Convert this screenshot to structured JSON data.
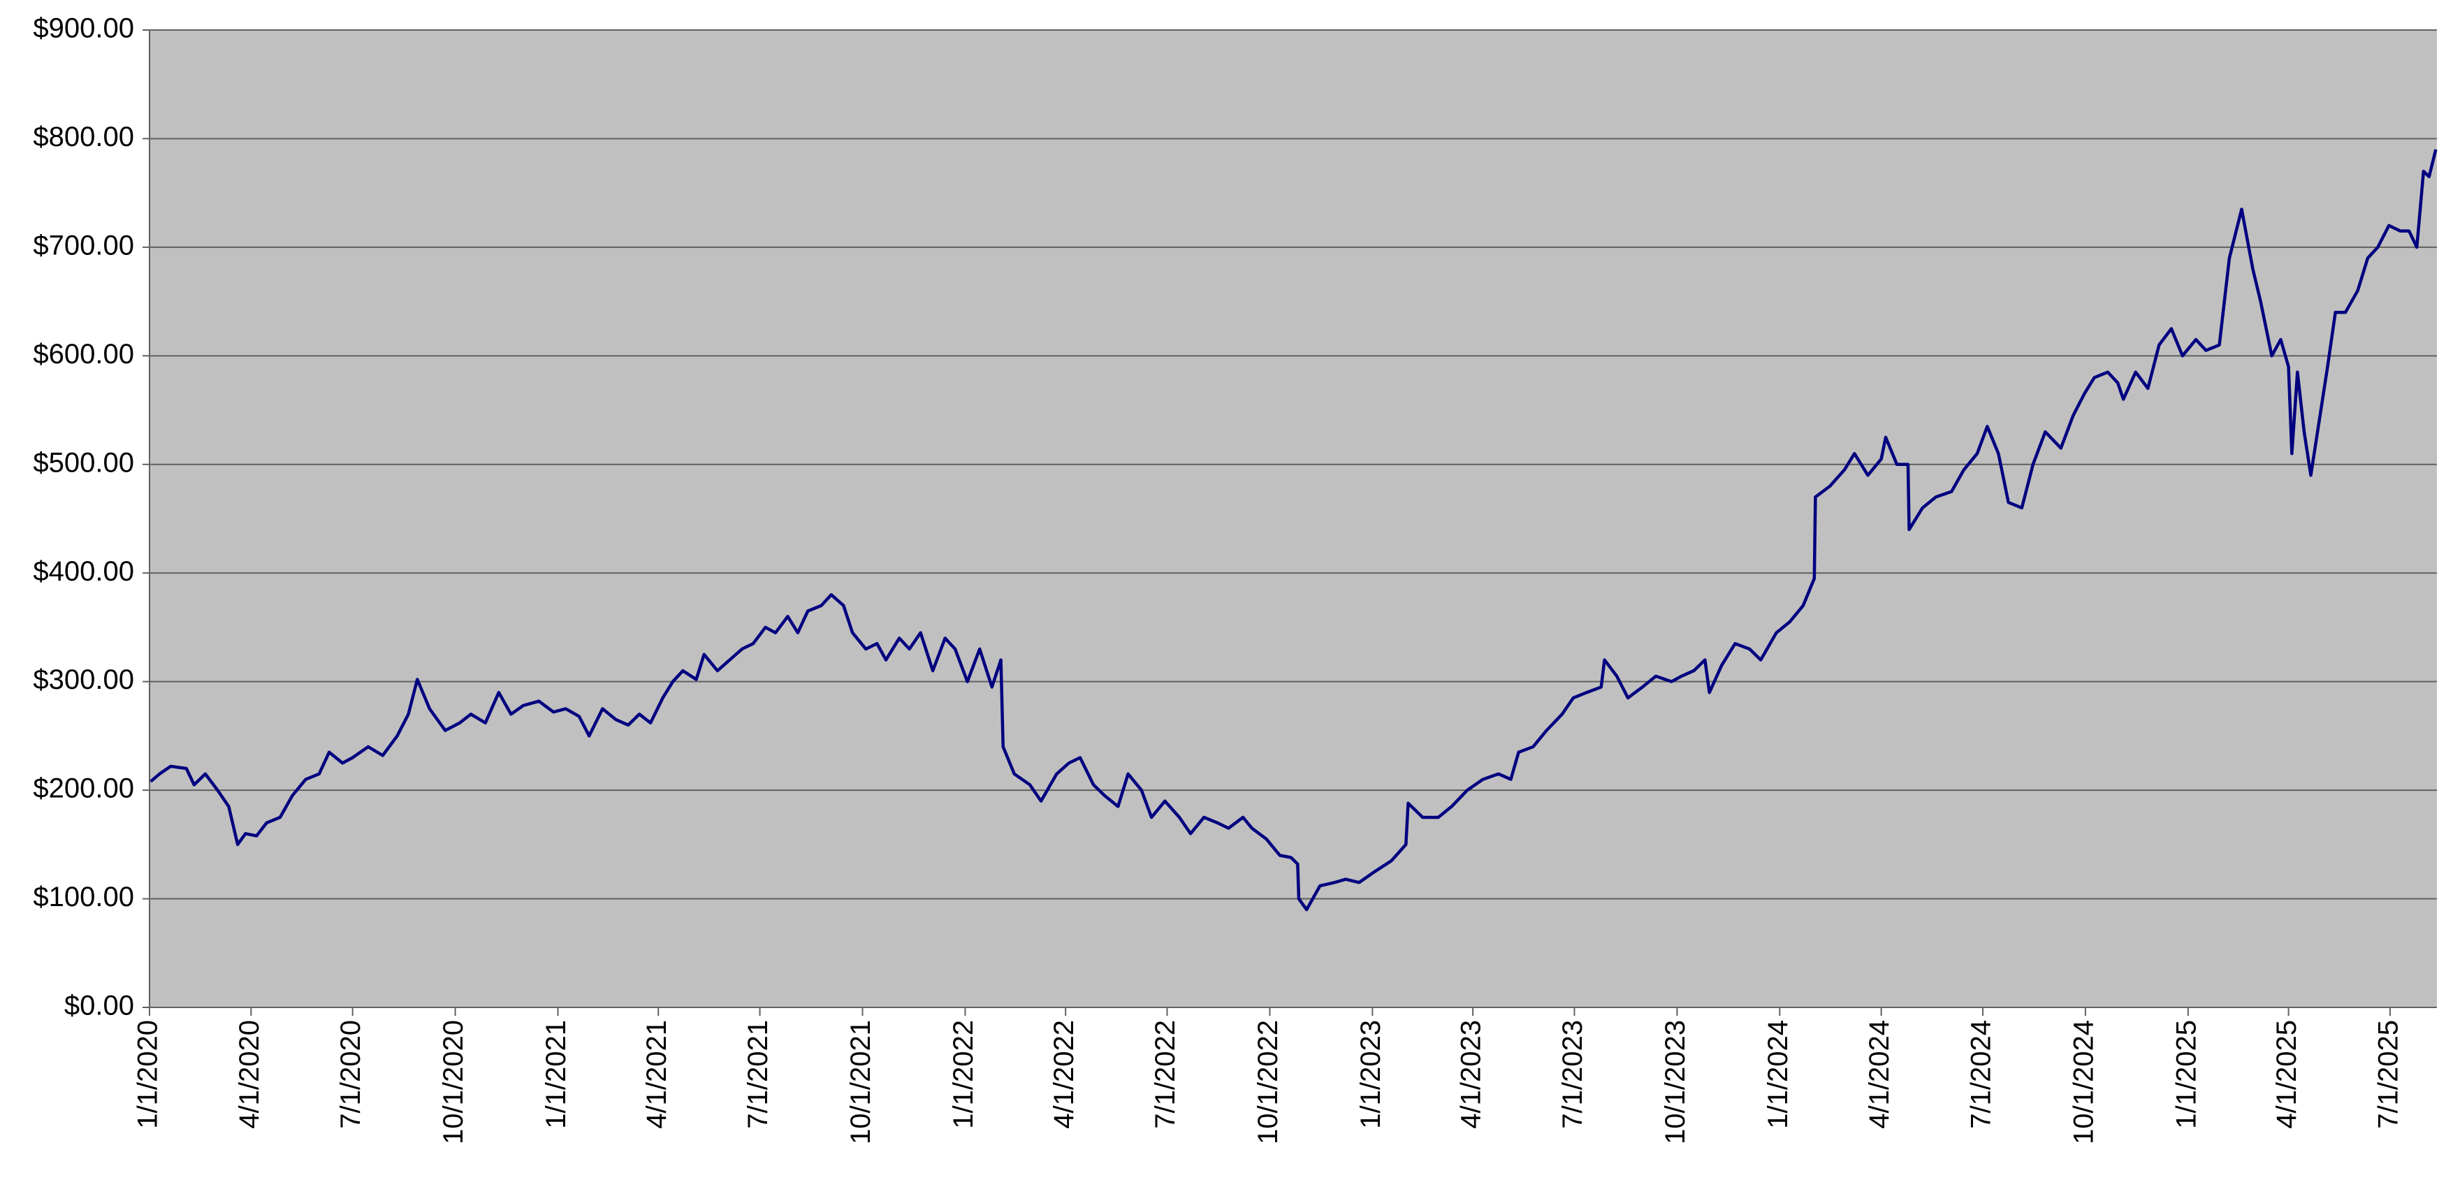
{
  "chart_data": {
    "type": "line",
    "color": "#000080",
    "background": "#c0c0c0",
    "grid": true,
    "xlim": [
      "2020-01-01",
      "2025-08-12"
    ],
    "ylim": [
      0,
      900
    ],
    "yticks": [
      {
        "value": 0,
        "label": "$0.00"
      },
      {
        "value": 100,
        "label": "$100.00"
      },
      {
        "value": 200,
        "label": "$200.00"
      },
      {
        "value": 300,
        "label": "$300.00"
      },
      {
        "value": 400,
        "label": "$400.00"
      },
      {
        "value": 500,
        "label": "$500.00"
      },
      {
        "value": 600,
        "label": "$600.00"
      },
      {
        "value": 700,
        "label": "$700.00"
      },
      {
        "value": 800,
        "label": "$800.00"
      },
      {
        "value": 900,
        "label": "$900.00"
      }
    ],
    "xticks": [
      {
        "value": "2020-01-01",
        "label": "1/1/2020"
      },
      {
        "value": "2020-04-01",
        "label": "4/1/2020"
      },
      {
        "value": "2020-07-01",
        "label": "7/1/2020"
      },
      {
        "value": "2020-10-01",
        "label": "10/1/2020"
      },
      {
        "value": "2021-01-01",
        "label": "1/1/2021"
      },
      {
        "value": "2021-04-01",
        "label": "4/1/2021"
      },
      {
        "value": "2021-07-01",
        "label": "7/1/2021"
      },
      {
        "value": "2021-10-01",
        "label": "10/1/2021"
      },
      {
        "value": "2022-01-01",
        "label": "1/1/2022"
      },
      {
        "value": "2022-04-01",
        "label": "4/1/2022"
      },
      {
        "value": "2022-07-01",
        "label": "7/1/2022"
      },
      {
        "value": "2022-10-01",
        "label": "10/1/2022"
      },
      {
        "value": "2023-01-01",
        "label": "1/1/2023"
      },
      {
        "value": "2023-04-01",
        "label": "4/1/2023"
      },
      {
        "value": "2023-07-01",
        "label": "7/1/2023"
      },
      {
        "value": "2023-10-01",
        "label": "10/1/2023"
      },
      {
        "value": "2024-01-01",
        "label": "1/1/2024"
      },
      {
        "value": "2024-04-01",
        "label": "4/1/2024"
      },
      {
        "value": "2024-07-01",
        "label": "7/1/2024"
      },
      {
        "value": "2024-10-01",
        "label": "10/1/2024"
      },
      {
        "value": "2025-01-01",
        "label": "1/1/2025"
      },
      {
        "value": "2025-04-01",
        "label": "4/1/2025"
      },
      {
        "value": "2025-07-01",
        "label": "7/1/2025"
      }
    ],
    "x": [
      "2020-01-02",
      "2020-01-10",
      "2020-01-20",
      "2020-02-03",
      "2020-02-10",
      "2020-02-20",
      "2020-03-02",
      "2020-03-12",
      "2020-03-20",
      "2020-03-27",
      "2020-04-06",
      "2020-04-15",
      "2020-04-27",
      "2020-05-08",
      "2020-05-20",
      "2020-06-01",
      "2020-06-10",
      "2020-06-22",
      "2020-07-01",
      "2020-07-15",
      "2020-07-28",
      "2020-08-10",
      "2020-08-20",
      "2020-08-28",
      "2020-09-08",
      "2020-09-22",
      "2020-10-05",
      "2020-10-15",
      "2020-10-28",
      "2020-11-09",
      "2020-11-20",
      "2020-12-01",
      "2020-12-15",
      "2020-12-28",
      "2021-01-08",
      "2021-01-20",
      "2021-01-29",
      "2021-02-10",
      "2021-02-22",
      "2021-03-05",
      "2021-03-15",
      "2021-03-25",
      "2021-04-05",
      "2021-04-14",
      "2021-04-23",
      "2021-05-05",
      "2021-05-12",
      "2021-05-24",
      "2021-06-04",
      "2021-06-15",
      "2021-06-25",
      "2021-07-06",
      "2021-07-15",
      "2021-07-26",
      "2021-08-04",
      "2021-08-13",
      "2021-08-25",
      "2021-09-03",
      "2021-09-14",
      "2021-09-22",
      "2021-10-04",
      "2021-10-14",
      "2021-10-22",
      "2021-11-03",
      "2021-11-12",
      "2021-11-22",
      "2021-12-03",
      "2021-12-14",
      "2021-12-23",
      "2022-01-03",
      "2022-01-14",
      "2022-01-25",
      "2022-02-02",
      "2022-02-04",
      "2022-02-14",
      "2022-02-28",
      "2022-03-10",
      "2022-03-24",
      "2022-04-04",
      "2022-04-14",
      "2022-04-26",
      "2022-05-06",
      "2022-05-18",
      "2022-05-27",
      "2022-06-08",
      "2022-06-17",
      "2022-06-29",
      "2022-07-12",
      "2022-07-22",
      "2022-08-03",
      "2022-08-15",
      "2022-08-25",
      "2022-09-07",
      "2022-09-15",
      "2022-09-28",
      "2022-10-10",
      "2022-10-20",
      "2022-10-26",
      "2022-10-27",
      "2022-11-03",
      "2022-11-15",
      "2022-11-28",
      "2022-12-08",
      "2022-12-20",
      "2023-01-03",
      "2023-01-18",
      "2023-01-31",
      "2023-02-02",
      "2023-02-15",
      "2023-03-01",
      "2023-03-13",
      "2023-03-27",
      "2023-04-10",
      "2023-04-24",
      "2023-05-05",
      "2023-05-12",
      "2023-05-25",
      "2023-06-06",
      "2023-06-20",
      "2023-06-30",
      "2023-07-12",
      "2023-07-25",
      "2023-07-28",
      "2023-08-08",
      "2023-08-18",
      "2023-08-31",
      "2023-09-12",
      "2023-09-26",
      "2023-10-05",
      "2023-10-16",
      "2023-10-26",
      "2023-10-30",
      "2023-11-10",
      "2023-11-22",
      "2023-12-05",
      "2023-12-15",
      "2023-12-29",
      "2024-01-10",
      "2024-01-22",
      "2024-02-01",
      "2024-02-02",
      "2024-02-15",
      "2024-02-28",
      "2024-03-08",
      "2024-03-20",
      "2024-04-01",
      "2024-04-05",
      "2024-04-15",
      "2024-04-25",
      "2024-04-26",
      "2024-05-08",
      "2024-05-20",
      "2024-06-03",
      "2024-06-14",
      "2024-06-26",
      "2024-07-05",
      "2024-07-15",
      "2024-07-24",
      "2024-08-05",
      "2024-08-15",
      "2024-08-26",
      "2024-09-09",
      "2024-09-20",
      "2024-09-30",
      "2024-10-09",
      "2024-10-21",
      "2024-10-30",
      "2024-11-04",
      "2024-11-15",
      "2024-11-26",
      "2024-12-06",
      "2024-12-17",
      "2024-12-27",
      "2025-01-08",
      "2025-01-17",
      "2025-01-29",
      "2025-02-07",
      "2025-02-18",
      "2025-02-28",
      "2025-03-07",
      "2025-03-17",
      "2025-03-25",
      "2025-04-01",
      "2025-04-04",
      "2025-04-09",
      "2025-04-15",
      "2025-04-21",
      "2025-04-30",
      "2025-05-06",
      "2025-05-13",
      "2025-05-22",
      "2025-06-02",
      "2025-06-11",
      "2025-06-20",
      "2025-06-30",
      "2025-07-10",
      "2025-07-18",
      "2025-07-25",
      "2025-07-31",
      "2025-08-05",
      "2025-08-11"
    ],
    "values": [
      208,
      215,
      222,
      220,
      205,
      215,
      200,
      185,
      150,
      160,
      158,
      170,
      175,
      195,
      210,
      215,
      235,
      225,
      230,
      240,
      232,
      250,
      270,
      302,
      275,
      255,
      262,
      270,
      262,
      290,
      270,
      278,
      282,
      272,
      275,
      268,
      250,
      275,
      265,
      260,
      270,
      262,
      285,
      300,
      310,
      302,
      325,
      310,
      320,
      330,
      335,
      350,
      345,
      360,
      345,
      365,
      370,
      380,
      370,
      345,
      330,
      335,
      320,
      340,
      330,
      345,
      310,
      340,
      330,
      300,
      330,
      295,
      320,
      240,
      215,
      205,
      190,
      215,
      225,
      230,
      205,
      195,
      185,
      215,
      200,
      175,
      190,
      175,
      160,
      175,
      170,
      165,
      175,
      165,
      155,
      140,
      138,
      132,
      100,
      90,
      112,
      115,
      118,
      115,
      125,
      135,
      150,
      188,
      175,
      175,
      185,
      200,
      210,
      215,
      210,
      235,
      240,
      255,
      270,
      285,
      290,
      295,
      320,
      305,
      285,
      295,
      305,
      300,
      305,
      310,
      320,
      290,
      315,
      335,
      330,
      320,
      345,
      355,
      370,
      395,
      470,
      480,
      495,
      510,
      490,
      505,
      525,
      500,
      500,
      440,
      460,
      470,
      475,
      495,
      510,
      535,
      510,
      465,
      460,
      500,
      530,
      515,
      545,
      565,
      580,
      585,
      575,
      560,
      585,
      570,
      610,
      625,
      600,
      615,
      605,
      610,
      690,
      735,
      680,
      650,
      600,
      615,
      590,
      510,
      585,
      530,
      490,
      550,
      590,
      640,
      640,
      660,
      690,
      700,
      720,
      715,
      715,
      700,
      770,
      765,
      790
    ]
  }
}
